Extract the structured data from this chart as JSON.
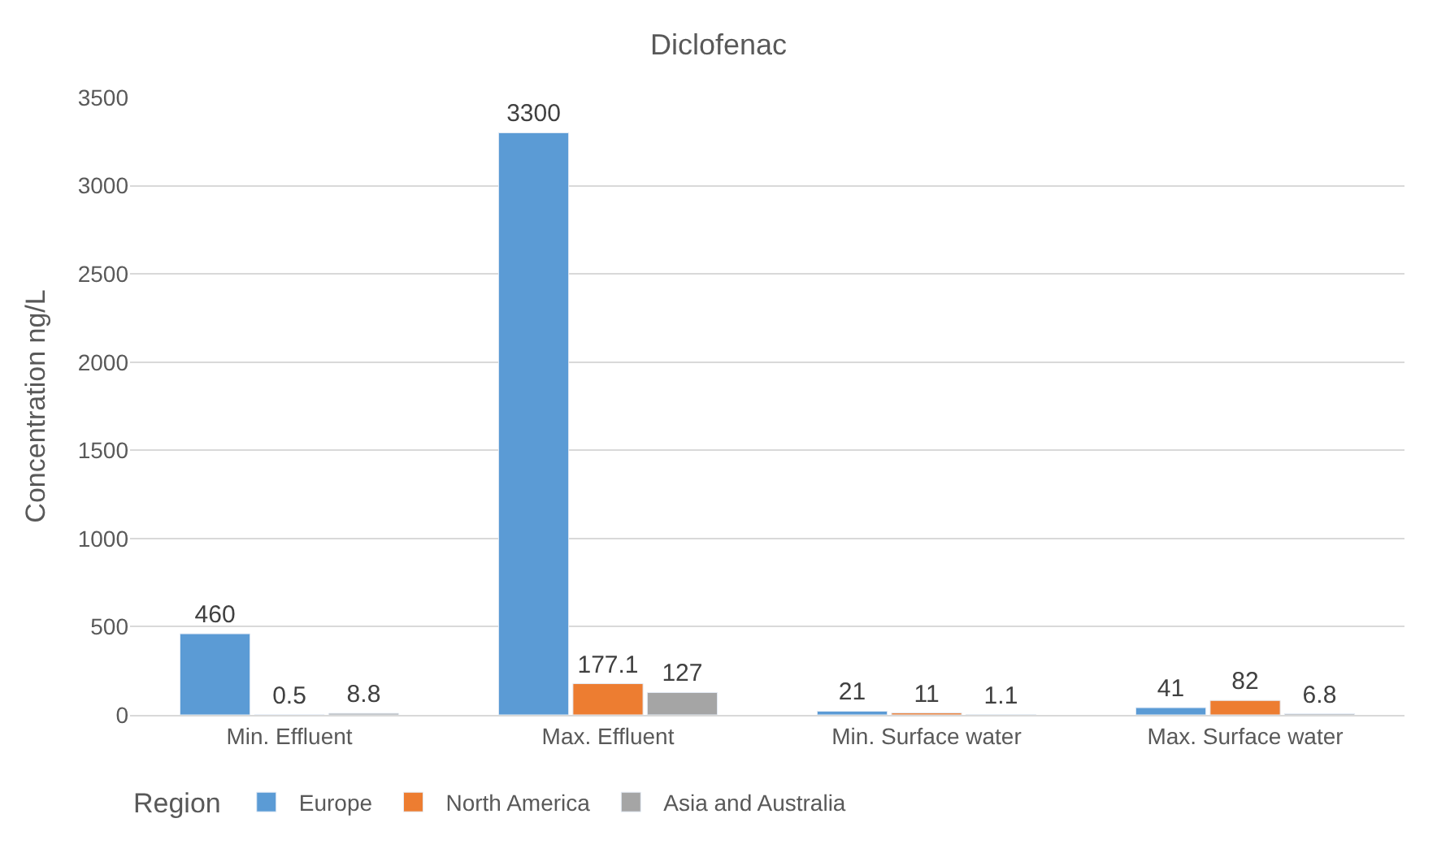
{
  "chart_data": {
    "type": "bar",
    "title": "Diclofenac",
    "ylabel": "Concentration ng/L",
    "legend_title": "Region",
    "categories": [
      "Min. Effluent",
      "Max. Effluent",
      "Min. Surface water",
      "Max. Surface water"
    ],
    "series": [
      {
        "name": "Europe",
        "color": "#5b9bd5",
        "values": [
          460,
          3300,
          21,
          41
        ]
      },
      {
        "name": "North America",
        "color": "#ed7d31",
        "values": [
          0.5,
          177.1,
          11,
          82
        ]
      },
      {
        "name": "Asia and Australia",
        "color": "#a5a5a5",
        "values": [
          8.8,
          127,
          1.1,
          6.8
        ]
      }
    ],
    "ylim": [
      0,
      3500
    ],
    "yticks": [
      0,
      500,
      1000,
      1500,
      2000,
      2500,
      3000,
      3500
    ],
    "grid": "y",
    "legend": "bottom",
    "data_labels": true
  }
}
